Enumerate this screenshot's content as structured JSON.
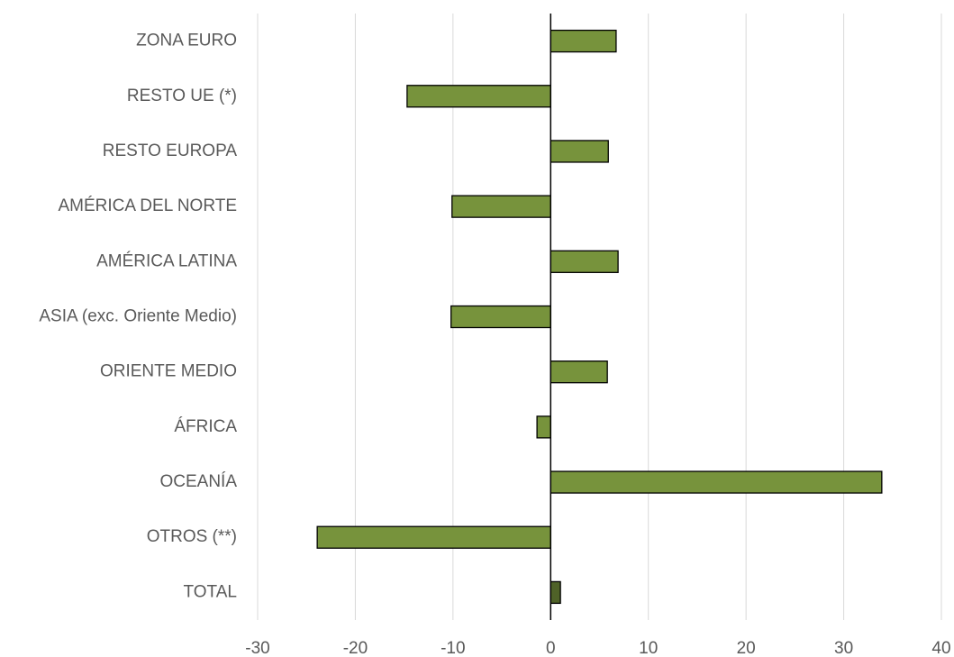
{
  "chart_data": {
    "type": "bar",
    "orientation": "horizontal",
    "categories": [
      "ZONA EURO",
      "RESTO UE (*)",
      "RESTO EUROPA",
      "AMÉRICA DEL NORTE",
      "AMÉRICA LATINA",
      "ASIA (exc. Oriente Medio)",
      "ORIENTE MEDIO",
      "ÁFRICA",
      "OCEANÍA",
      "OTROS (**)",
      "TOTAL"
    ],
    "values": [
      6.7,
      -14.7,
      5.9,
      -10.1,
      6.9,
      -10.2,
      5.8,
      -1.4,
      33.9,
      -23.9,
      1.0
    ],
    "colors": [
      "#77933c",
      "#77933c",
      "#77933c",
      "#77933c",
      "#77933c",
      "#77933c",
      "#77933c",
      "#77933c",
      "#77933c",
      "#77933c",
      "#4f6228"
    ],
    "xlim": [
      -30,
      40
    ],
    "xticks": [
      -30,
      -20,
      -10,
      0,
      10,
      20,
      30,
      40
    ],
    "grid": true
  }
}
